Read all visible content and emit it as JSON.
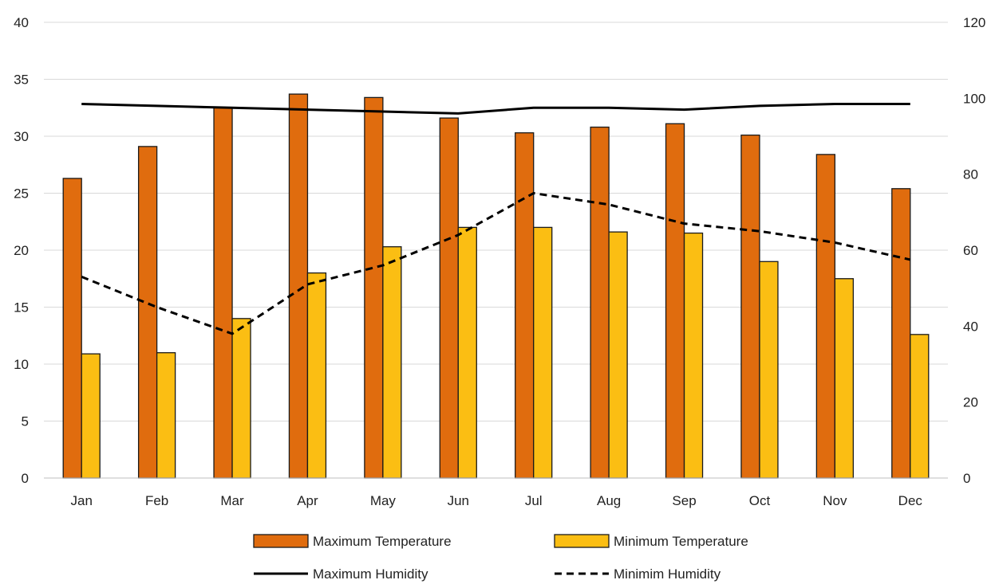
{
  "chart_data": {
    "type": "bar",
    "categories": [
      "Jan",
      "Feb",
      "Mar",
      "Apr",
      "May",
      "Jun",
      "Jul",
      "Aug",
      "Sep",
      "Oct",
      "Nov",
      "Dec"
    ],
    "series": [
      {
        "name": "Maximum Temperature",
        "type": "bar",
        "axis": "left",
        "color": "#e06c0e",
        "values": [
          26.3,
          29.1,
          32.5,
          33.7,
          33.4,
          31.6,
          30.3,
          30.8,
          31.1,
          30.1,
          28.4,
          25.4
        ]
      },
      {
        "name": "Minimum Temperature",
        "type": "bar",
        "axis": "left",
        "color": "#fbbe13",
        "values": [
          10.9,
          11.0,
          14.0,
          18.0,
          20.3,
          22.0,
          22.0,
          21.6,
          21.5,
          19.0,
          17.5,
          12.6
        ]
      },
      {
        "name": "Maximum Humidity",
        "type": "line",
        "axis": "right",
        "color": "#000000",
        "style": "solid",
        "values": [
          98.5,
          98,
          97.5,
          97,
          96.5,
          96,
          97.5,
          97.5,
          97,
          98,
          98.5,
          98.5
        ]
      },
      {
        "name": "Minimim Humidity",
        "type": "line",
        "axis": "right",
        "color": "#000000",
        "style": "dashed",
        "values": [
          53,
          45,
          38,
          51,
          56,
          64,
          75,
          72,
          67,
          65,
          62,
          57.5
        ]
      }
    ],
    "y_left": {
      "min": 0,
      "max": 40,
      "ticks": [
        "0",
        "5",
        "10",
        "15",
        "20",
        "25",
        "30",
        "35",
        "40"
      ]
    },
    "y_right": {
      "min": 0,
      "max": 120,
      "ticks": [
        "0",
        "20",
        "40",
        "60",
        "80",
        "100",
        "120"
      ]
    },
    "grid": true,
    "legend_position": "bottom"
  }
}
